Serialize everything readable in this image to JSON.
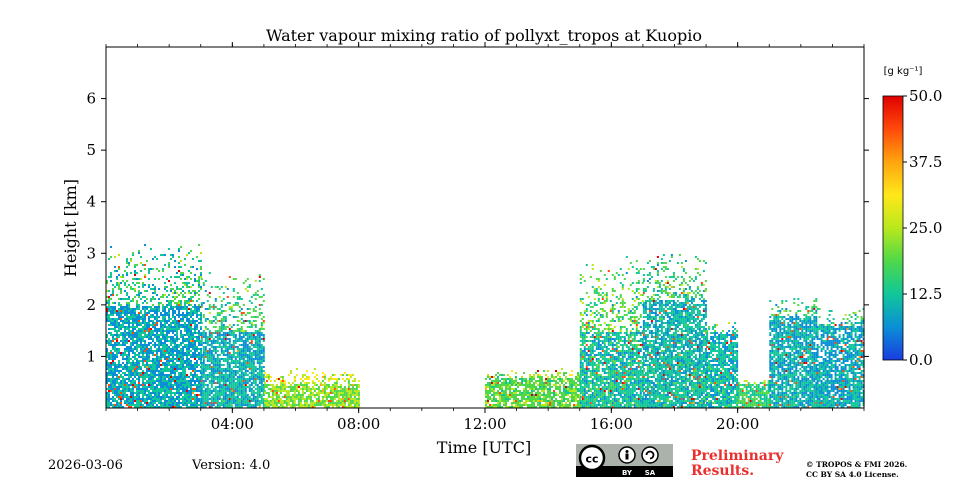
{
  "chart_data": {
    "type": "heatmap",
    "title": "Water vapour mixing ratio of pollyxt_tropos at Kuopio",
    "xlabel": "Time [UTC]",
    "ylabel": "Height [km]",
    "xlim": [
      0,
      24
    ],
    "ylim": [
      0,
      7
    ],
    "x_ticks": [
      {
        "value": 4,
        "label": "04:00"
      },
      {
        "value": 8,
        "label": "08:00"
      },
      {
        "value": 12,
        "label": "12:00"
      },
      {
        "value": 16,
        "label": "16:00"
      },
      {
        "value": 20,
        "label": "20:00"
      }
    ],
    "y_ticks": [
      {
        "value": 1,
        "label": "1"
      },
      {
        "value": 2,
        "label": "2"
      },
      {
        "value": 3,
        "label": "3"
      },
      {
        "value": 4,
        "label": "4"
      },
      {
        "value": 5,
        "label": "5"
      },
      {
        "value": 6,
        "label": "6"
      }
    ],
    "colorbar": {
      "unit_label": "[g kg⁻¹]",
      "range": [
        0,
        50
      ],
      "ticks": [
        {
          "value": 0,
          "label": "0.0"
        },
        {
          "value": 12.5,
          "label": "12.5"
        },
        {
          "value": 25,
          "label": "25.0"
        },
        {
          "value": 37.5,
          "label": "37.5"
        },
        {
          "value": 50,
          "label": "50.0"
        }
      ],
      "colors": [
        "#1a3ce0",
        "#0a8fd6",
        "#11c79a",
        "#4fd84a",
        "#b8e81c",
        "#ffe81a",
        "#ffa50f",
        "#ff4a0a",
        "#e00000"
      ]
    },
    "data_regions": [
      {
        "t_start": 0.0,
        "t_end": 3.0,
        "top_km": 2.0,
        "sparse_top_km": 3.3,
        "mean_value": 10
      },
      {
        "t_start": 3.0,
        "t_end": 5.0,
        "top_km": 1.5,
        "sparse_top_km": 2.7,
        "mean_value": 11
      },
      {
        "t_start": 5.0,
        "t_end": 8.0,
        "top_km": 0.5,
        "sparse_top_km": 0.8,
        "mean_value": 22
      },
      {
        "t_start": 12.0,
        "t_end": 15.0,
        "top_km": 0.6,
        "sparse_top_km": 0.8,
        "mean_value": 20
      },
      {
        "t_start": 15.0,
        "t_end": 17.0,
        "top_km": 1.5,
        "sparse_top_km": 3.0,
        "mean_value": 13
      },
      {
        "t_start": 17.0,
        "t_end": 19.0,
        "top_km": 2.1,
        "sparse_top_km": 3.1,
        "mean_value": 12
      },
      {
        "t_start": 19.0,
        "t_end": 20.0,
        "top_km": 1.5,
        "sparse_top_km": 1.7,
        "mean_value": 12
      },
      {
        "t_start": 20.0,
        "t_end": 21.0,
        "top_km": 0.5,
        "sparse_top_km": 0.6,
        "mean_value": 16
      },
      {
        "t_start": 21.0,
        "t_end": 22.5,
        "top_km": 1.8,
        "sparse_top_km": 2.2,
        "mean_value": 11
      },
      {
        "t_start": 22.5,
        "t_end": 24.0,
        "top_km": 1.6,
        "sparse_top_km": 2.0,
        "mean_value": 10
      }
    ]
  },
  "footer": {
    "date": "2026-03-06",
    "version": "Version: 4.0",
    "preliminary": "Preliminary Results.",
    "copyright_line1": "© TROPOS & FMI 2026.",
    "copyright_line2": "CC BY SA 4.0 License.",
    "license_badge": {
      "cc": "cc",
      "by": "BY",
      "sa": "SA"
    }
  }
}
